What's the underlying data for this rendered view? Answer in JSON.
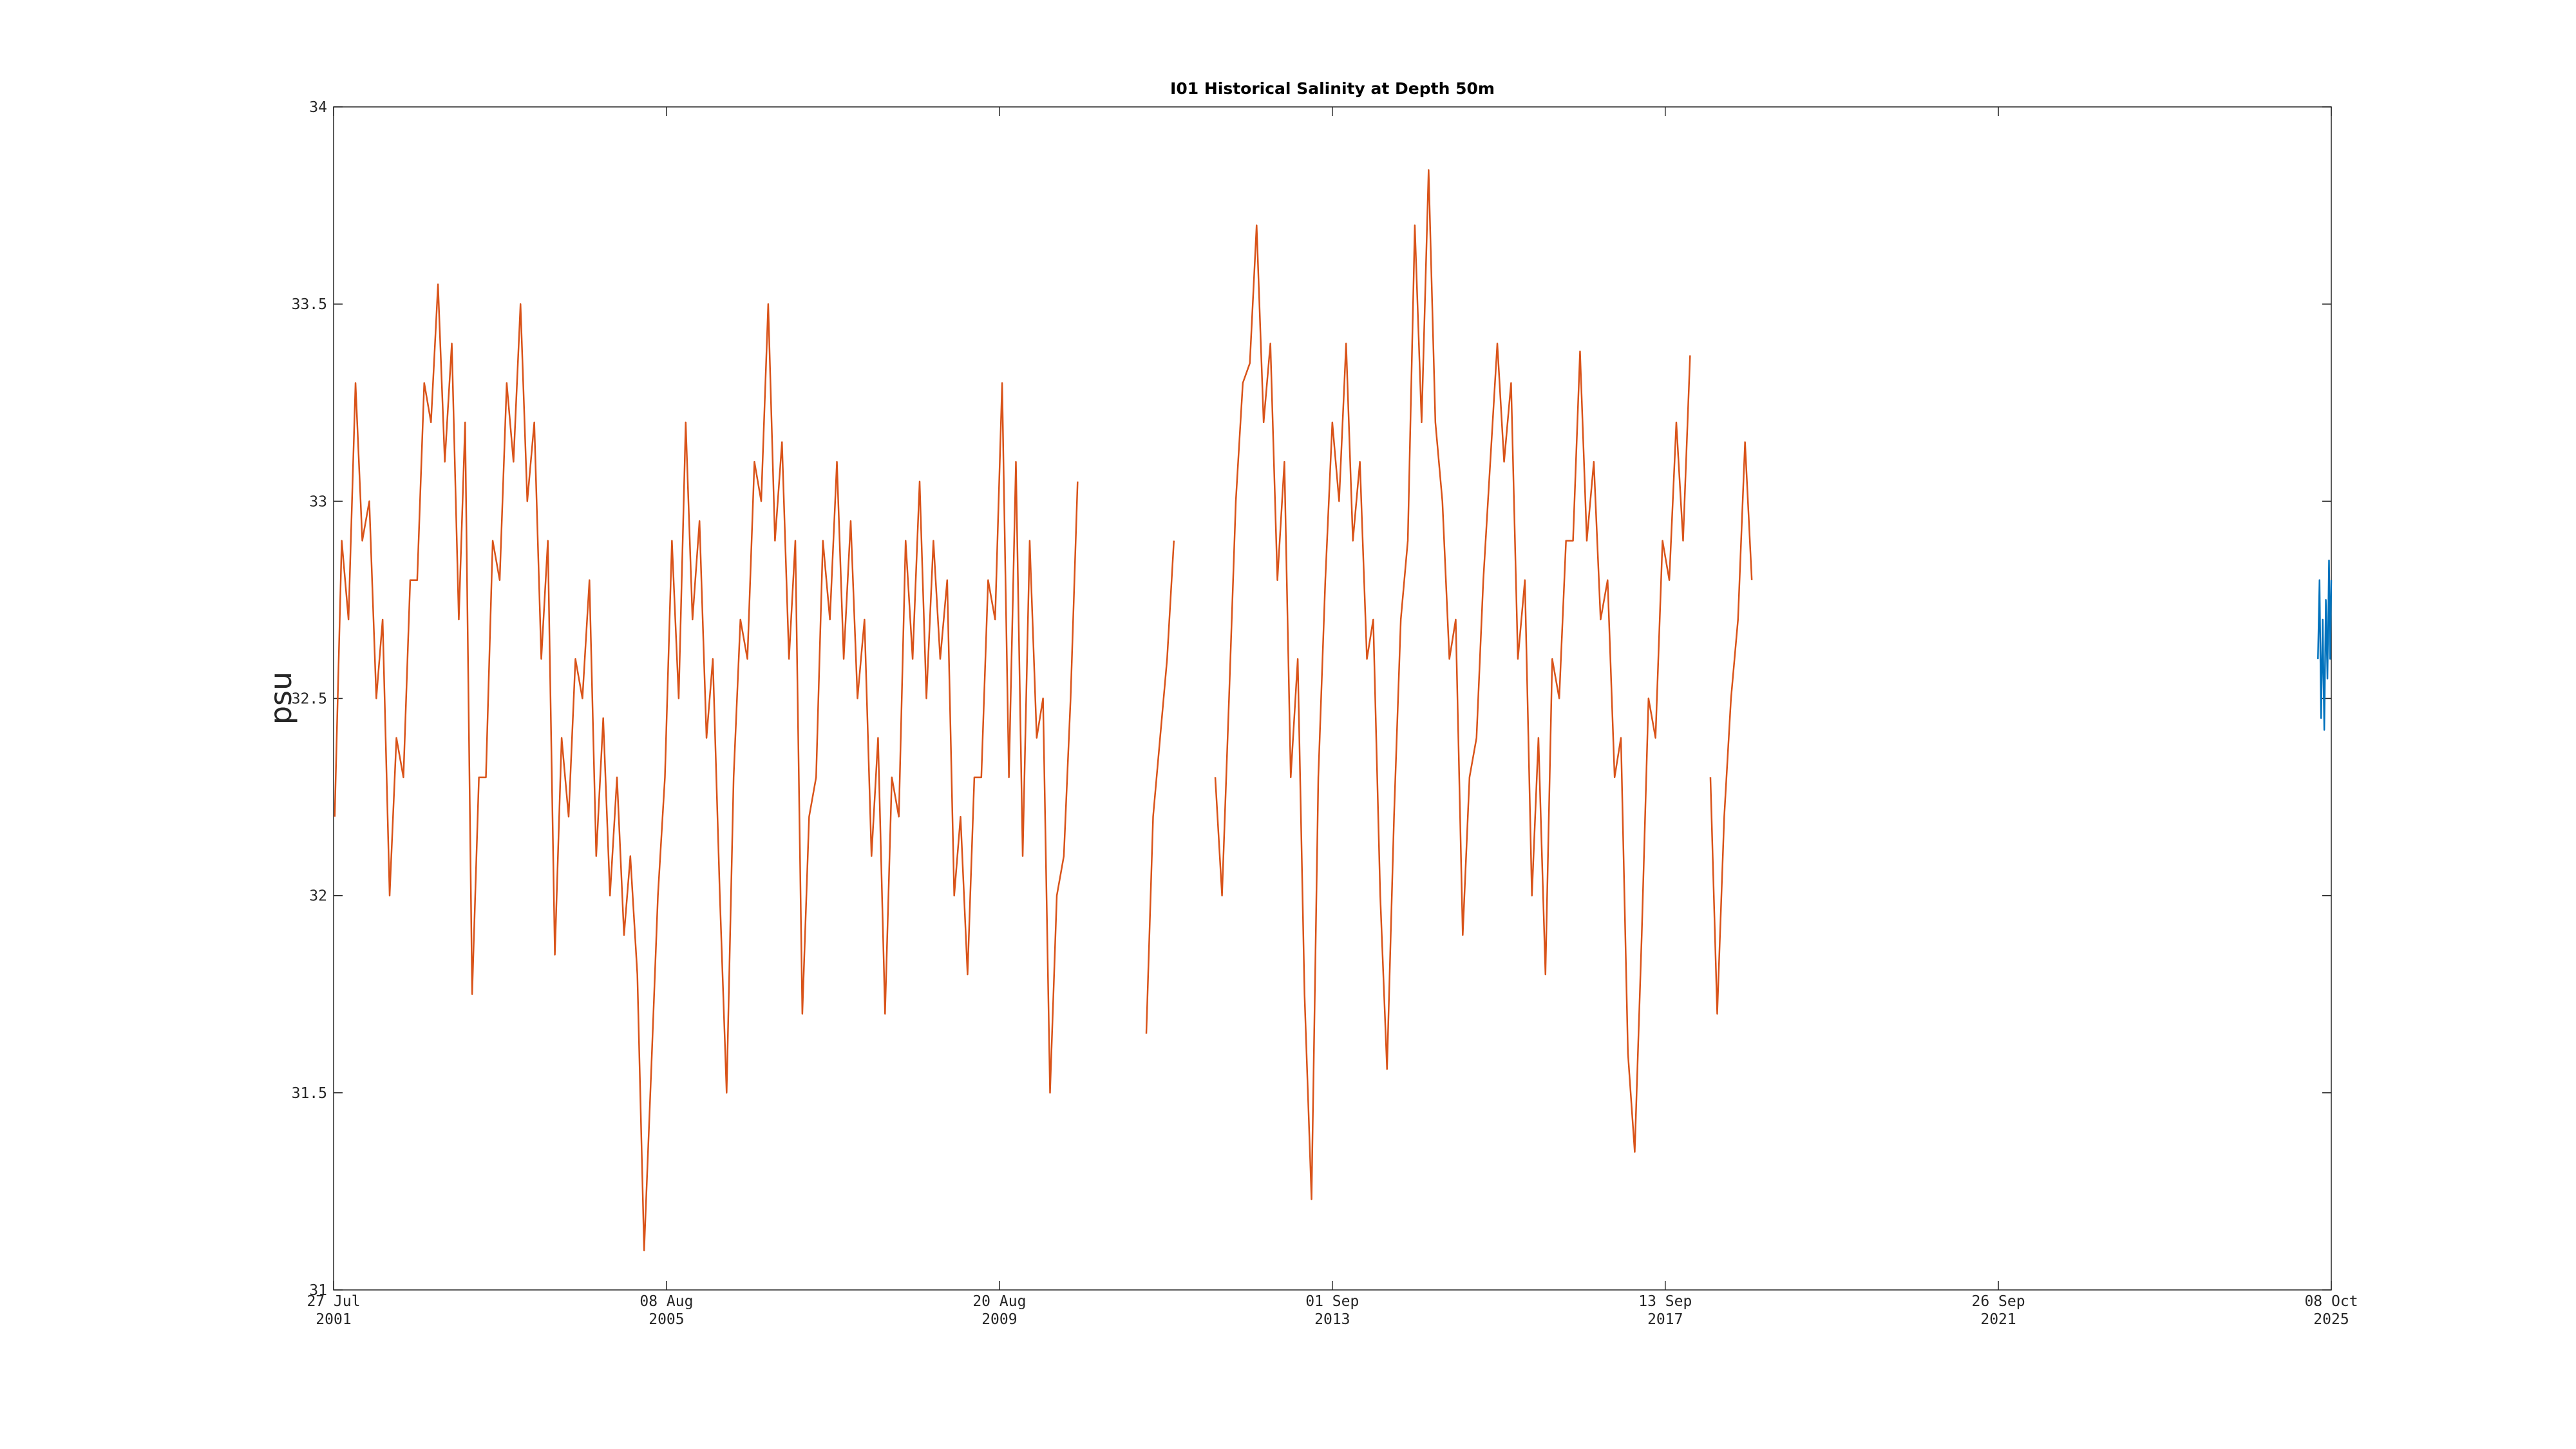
{
  "chart_data": {
    "type": "line",
    "title": "I01 Historical Salinity at Depth 50m",
    "y_label": "psu",
    "xlim": [
      "2001-07-27",
      "2025-10-08"
    ],
    "xticks": [
      {
        "value": "2001-07-27",
        "label": [
          "27 Jul",
          "2001"
        ]
      },
      {
        "value": "2005-08-08",
        "label": [
          "08 Aug",
          "2005"
        ]
      },
      {
        "value": "2009-08-20",
        "label": [
          "20 Aug",
          "2009"
        ]
      },
      {
        "value": "2013-09-01",
        "label": [
          "01 Sep",
          "2013"
        ]
      },
      {
        "value": "2017-09-13",
        "label": [
          "13 Sep",
          "2017"
        ]
      },
      {
        "value": "2021-09-26",
        "label": [
          "26 Sep",
          "2021"
        ]
      },
      {
        "value": "2025-10-08",
        "label": [
          "08 Oct",
          "2025"
        ]
      }
    ],
    "ylim": [
      31,
      34
    ],
    "yticks": [
      31,
      31.5,
      32,
      32.5,
      33,
      33.5,
      34
    ],
    "grid": false,
    "series": [
      {
        "color": "#d95319",
        "x": [
          "2001-08",
          "2001-09",
          "2001-10",
          "2001-11",
          "2001-12",
          "2002-01",
          "2002-02",
          "2002-03",
          "2002-04",
          "2002-05",
          "2002-06",
          "2002-07",
          "2002-08",
          "2002-09",
          "2002-10",
          "2002-11",
          "2002-12",
          "2003-01",
          "2003-02",
          "2003-03",
          "2003-04",
          "2003-05",
          "2003-06",
          "2003-07",
          "2003-08",
          "2003-09",
          "2003-10",
          "2003-11",
          "2003-12",
          "2004-01",
          "2004-02",
          "2004-03",
          "2004-04",
          "2004-05",
          "2004-06",
          "2004-07",
          "2004-08",
          "2004-09",
          "2004-10",
          "2004-11",
          "2004-12",
          "2005-01",
          "2005-02",
          "2005-03",
          "2005-04",
          "2005-05",
          "2005-06",
          "2005-07",
          "2005-08",
          "2005-09",
          "2005-10",
          "2005-11",
          "2005-12",
          "2006-01",
          "2006-02",
          "2006-03",
          "2006-04",
          "2006-05",
          "2006-06",
          "2006-07",
          "2006-08",
          "2006-09",
          "2006-10",
          "2006-11",
          "2006-12",
          "2007-01",
          "2007-02",
          "2007-03",
          "2007-04",
          "2007-05",
          "2007-06",
          "2007-07",
          "2007-08",
          "2007-09",
          "2007-10",
          "2007-11",
          "2007-12",
          "2008-01",
          "2008-02",
          "2008-03",
          "2008-04",
          "2008-05",
          "2008-06",
          "2008-07",
          "2008-08",
          "2008-09",
          "2008-10",
          "2008-11",
          "2008-12",
          "2009-01",
          "2009-02",
          "2009-03",
          "2009-04",
          "2009-05",
          "2009-06",
          "2009-07",
          "2009-08",
          "2009-09",
          "2009-10",
          "2009-11",
          "2009-12",
          "2010-01",
          "2010-02",
          "2010-03",
          "2010-04",
          "2010-05",
          "2010-06",
          "2010-07",
          "2010-08",
          "2010-09",
          "2010-10",
          "2010-11",
          "2010-12",
          "2011-01",
          "2011-02",
          "2011-03",
          "2011-04",
          "2011-05",
          "2011-06",
          "2011-07",
          "2011-08",
          "2011-09",
          "2011-10",
          "2011-11",
          "2011-12",
          "2012-01",
          "2012-02",
          "2012-03",
          "2012-04",
          "2012-05",
          "2012-06",
          "2012-07",
          "2012-08",
          "2012-09",
          "2012-10",
          "2012-11",
          "2012-12",
          "2013-01",
          "2013-02",
          "2013-03",
          "2013-04",
          "2013-05",
          "2013-06",
          "2013-07",
          "2013-08",
          "2013-09",
          "2013-10",
          "2013-11",
          "2013-12",
          "2014-01",
          "2014-02",
          "2014-03",
          "2014-04",
          "2014-05",
          "2014-06",
          "2014-07",
          "2014-08",
          "2014-09",
          "2014-10",
          "2014-11",
          "2014-12",
          "2015-01",
          "2015-02",
          "2015-03",
          "2015-04",
          "2015-05",
          "2015-06",
          "2015-07",
          "2015-08",
          "2015-09",
          "2015-10",
          "2015-11",
          "2015-12",
          "2016-01",
          "2016-02",
          "2016-03",
          "2016-04",
          "2016-05",
          "2016-06",
          "2016-07",
          "2016-08",
          "2016-09",
          "2016-10",
          "2016-11",
          "2016-12",
          "2017-01",
          "2017-02",
          "2017-03",
          "2017-04",
          "2017-05",
          "2017-06",
          "2017-07",
          "2017-08",
          "2017-09",
          "2017-10",
          "2017-11",
          "2017-12",
          "2018-01",
          "2018-02",
          "2018-03",
          "2018-04",
          "2018-05",
          "2018-06",
          "2018-07",
          "2018-08",
          "2018-09",
          "2018-10"
        ],
        "values": [
          32.2,
          32.9,
          32.7,
          33.3,
          32.9,
          33.0,
          32.5,
          32.7,
          32.0,
          32.4,
          32.3,
          32.8,
          32.8,
          33.3,
          33.2,
          33.55,
          33.1,
          33.4,
          32.7,
          33.2,
          31.75,
          32.3,
          32.3,
          32.9,
          32.8,
          33.3,
          33.1,
          33.5,
          33.0,
          33.2,
          32.6,
          32.9,
          31.85,
          32.4,
          32.2,
          32.6,
          32.5,
          32.8,
          32.1,
          32.45,
          32.0,
          32.3,
          31.9,
          32.1,
          31.8,
          31.1,
          31.55,
          32.0,
          32.3,
          32.9,
          32.5,
          33.2,
          32.7,
          32.95,
          32.4,
          32.6,
          32.0,
          31.5,
          32.3,
          32.7,
          32.6,
          33.1,
          33.0,
          33.5,
          32.9,
          33.15,
          32.6,
          32.9,
          31.7,
          32.2,
          32.3,
          32.9,
          32.7,
          33.1,
          32.6,
          32.95,
          32.5,
          32.7,
          32.1,
          32.4,
          31.7,
          32.3,
          32.2,
          32.9,
          32.6,
          33.05,
          32.5,
          32.9,
          32.6,
          32.8,
          32.0,
          32.2,
          31.8,
          32.3,
          32.3,
          32.8,
          32.7,
          33.3,
          32.3,
          33.1,
          32.1,
          32.9,
          32.4,
          32.5,
          31.5,
          32.0,
          32.1,
          32.5,
          33.05,
          null,
          null,
          null,
          null,
          null,
          null,
          null,
          null,
          null,
          31.65,
          32.2,
          32.4,
          32.6,
          32.9,
          null,
          null,
          null,
          null,
          null,
          32.3,
          32.0,
          32.5,
          33.0,
          33.3,
          33.35,
          33.7,
          33.2,
          33.4,
          32.8,
          33.1,
          32.3,
          32.6,
          31.75,
          31.23,
          32.3,
          32.8,
          33.2,
          33.0,
          33.4,
          32.9,
          33.1,
          32.6,
          32.7,
          32.0,
          31.56,
          32.2,
          32.7,
          32.9,
          33.7,
          33.2,
          33.84,
          33.2,
          33.0,
          32.6,
          32.7,
          31.9,
          32.3,
          32.4,
          32.8,
          33.1,
          33.4,
          33.1,
          33.3,
          32.6,
          32.8,
          32.0,
          32.4,
          31.8,
          32.6,
          32.5,
          32.9,
          32.9,
          33.38,
          32.9,
          33.1,
          32.7,
          32.8,
          32.3,
          32.4,
          31.6,
          31.35,
          31.9,
          32.5,
          32.4,
          32.9,
          32.8,
          33.2,
          32.9,
          33.37,
          null,
          null,
          32.3,
          31.7,
          32.2,
          32.5,
          32.7,
          33.15,
          32.8
        ]
      },
      {
        "color": "#0072bd",
        "x": [
          "2025-08-10",
          "2025-08-17",
          "2025-08-24",
          "2025-08-31",
          "2025-09-07",
          "2025-09-14",
          "2025-09-21",
          "2025-09-28",
          "2025-10-03",
          "2025-10-08"
        ],
        "values": [
          32.6,
          32.8,
          32.45,
          32.7,
          32.42,
          32.75,
          32.55,
          32.85,
          32.6,
          32.8
        ]
      }
    ]
  }
}
